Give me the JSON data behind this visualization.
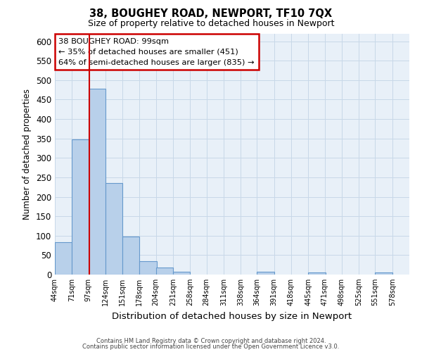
{
  "title": "38, BOUGHEY ROAD, NEWPORT, TF10 7QX",
  "subtitle": "Size of property relative to detached houses in Newport",
  "xlabel": "Distribution of detached houses by size in Newport",
  "ylabel": "Number of detached properties",
  "bar_left_edges": [
    44,
    71,
    97,
    124,
    151,
    178,
    204,
    231,
    258,
    284,
    311,
    338,
    364,
    391,
    418,
    445,
    471,
    498,
    525,
    551
  ],
  "bar_heights": [
    83,
    348,
    477,
    236,
    97,
    35,
    19,
    8,
    0,
    0,
    0,
    0,
    8,
    0,
    0,
    5,
    0,
    0,
    0,
    5
  ],
  "bin_width": 27,
  "bar_color": "#b8d0ea",
  "bar_edge_color": "#6699cc",
  "property_line_x": 99,
  "property_line_color": "#cc0000",
  "annotation_text_line1": "38 BOUGHEY ROAD: 99sqm",
  "annotation_text_line2": "← 35% of detached houses are smaller (451)",
  "annotation_text_line3": "64% of semi-detached houses are larger (835) →",
  "annotation_box_color": "#cc0000",
  "ylim": [
    0,
    620
  ],
  "yticks": [
    0,
    50,
    100,
    150,
    200,
    250,
    300,
    350,
    400,
    450,
    500,
    550,
    600
  ],
  "xtick_labels": [
    "44sqm",
    "71sqm",
    "97sqm",
    "124sqm",
    "151sqm",
    "178sqm",
    "204sqm",
    "231sqm",
    "258sqm",
    "284sqm",
    "311sqm",
    "338sqm",
    "364sqm",
    "391sqm",
    "418sqm",
    "445sqm",
    "471sqm",
    "498sqm",
    "525sqm",
    "551sqm",
    "578sqm"
  ],
  "xtick_positions": [
    44,
    71,
    97,
    124,
    151,
    178,
    204,
    231,
    258,
    284,
    311,
    338,
    364,
    391,
    418,
    445,
    471,
    498,
    525,
    551,
    578
  ],
  "grid_color": "#c8d8e8",
  "background_color": "#e8f0f8",
  "footer_line1": "Contains HM Land Registry data © Crown copyright and database right 2024.",
  "footer_line2": "Contains public sector information licensed under the Open Government Licence v3.0."
}
